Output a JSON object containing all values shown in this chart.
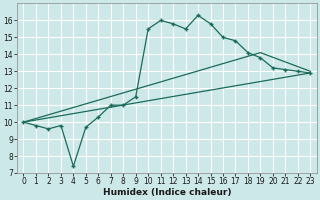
{
  "xlabel": "Humidex (Indice chaleur)",
  "background_color": "#cde8e8",
  "line_color": "#1a6b5a",
  "grid_color": "#ffffff",
  "xlim": [
    -0.5,
    23.5
  ],
  "ylim": [
    7,
    17
  ],
  "yticks": [
    7,
    8,
    9,
    10,
    11,
    12,
    13,
    14,
    15,
    16
  ],
  "xticks": [
    0,
    1,
    2,
    3,
    4,
    5,
    6,
    7,
    8,
    9,
    10,
    11,
    12,
    13,
    14,
    15,
    16,
    17,
    18,
    19,
    20,
    21,
    22,
    23
  ],
  "line1_x": [
    0,
    1,
    2,
    3,
    4,
    5,
    6,
    7,
    8,
    9,
    10,
    11,
    12,
    13,
    14,
    15,
    16,
    17,
    18,
    19,
    20,
    21,
    22,
    23
  ],
  "line1_y": [
    10.0,
    9.8,
    9.6,
    9.8,
    7.4,
    9.7,
    10.3,
    11.0,
    11.0,
    11.5,
    15.5,
    16.0,
    15.8,
    15.5,
    16.3,
    15.8,
    15.0,
    14.8,
    14.1,
    13.8,
    13.2,
    13.1,
    13.0,
    12.9
  ],
  "line2_x": [
    0,
    19,
    23
  ],
  "line2_y": [
    10.0,
    14.1,
    13.0
  ],
  "line3_x": [
    0,
    23
  ],
  "line3_y": [
    10.0,
    12.9
  ],
  "tick_fontsize": 5.5,
  "xlabel_fontsize": 6.5
}
